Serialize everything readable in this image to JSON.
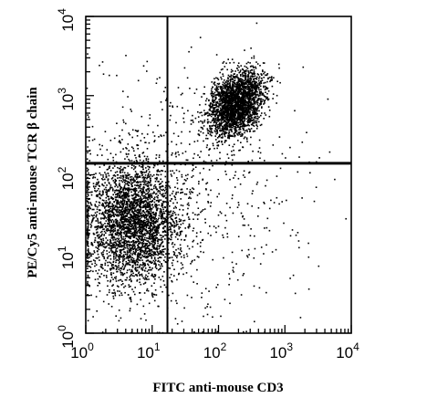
{
  "chart_data": {
    "type": "scatter",
    "title": "",
    "xlabel": "FITC anti-mouse CD3",
    "ylabel": "PE/Cy5 anti-mouse TCR β chain",
    "x_scale": "log",
    "y_scale": "log",
    "xlim": [
      1,
      10000
    ],
    "ylim": [
      1,
      10000
    ],
    "x_ticks": [
      {
        "base": "10",
        "exp": "0"
      },
      {
        "base": "10",
        "exp": "1"
      },
      {
        "base": "10",
        "exp": "2"
      },
      {
        "base": "10",
        "exp": "3"
      },
      {
        "base": "10",
        "exp": "4"
      }
    ],
    "y_ticks": [
      {
        "base": "10",
        "exp": "0"
      },
      {
        "base": "10",
        "exp": "1"
      },
      {
        "base": "10",
        "exp": "2"
      },
      {
        "base": "10",
        "exp": "3"
      },
      {
        "base": "10",
        "exp": "4"
      }
    ],
    "quadrant_gates": {
      "x": 17,
      "y": 140
    },
    "populations": [
      {
        "center": [
          5,
          25
        ],
        "spread_decades": [
          0.35,
          0.4
        ],
        "events": 3200
      },
      {
        "center": [
          180,
          800
        ],
        "spread_decades": [
          0.17,
          0.17
        ],
        "events": 2600
      },
      {
        "center": [
          30,
          60
        ],
        "spread_decades": [
          0.9,
          0.8
        ],
        "events": 650
      }
    ],
    "grid": false,
    "legend": "none"
  }
}
